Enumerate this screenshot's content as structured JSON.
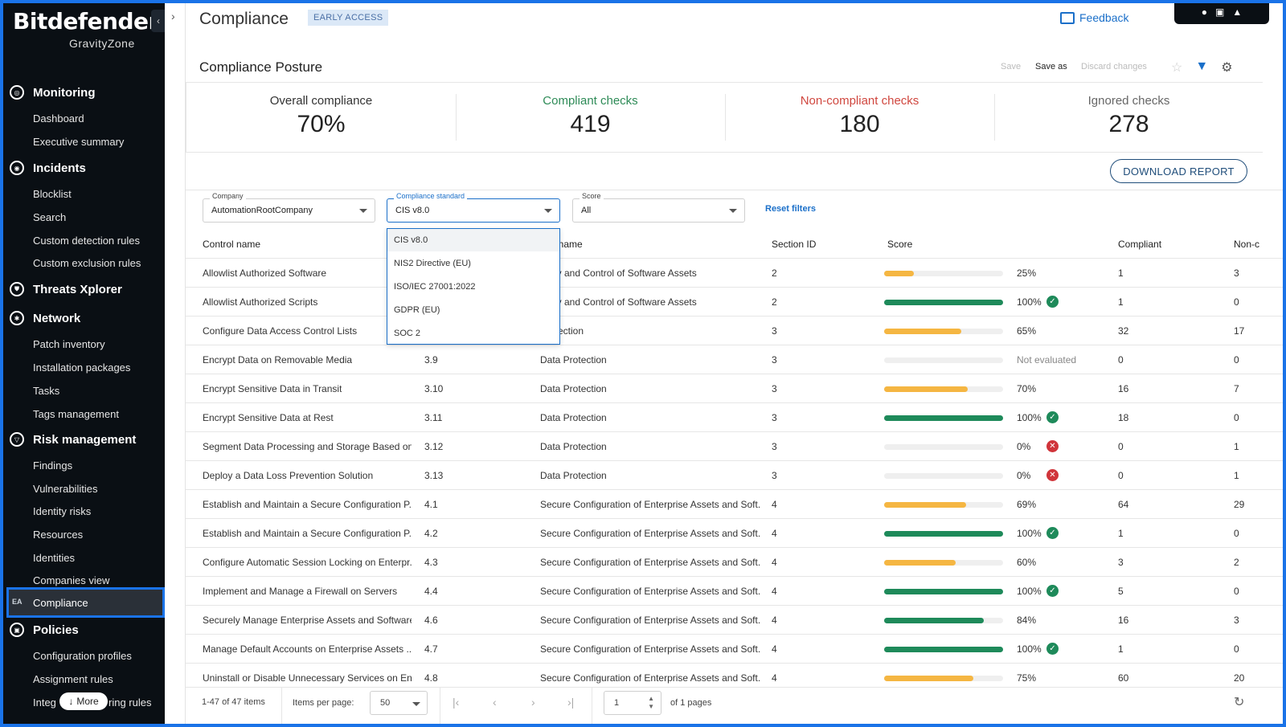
{
  "brand": {
    "name": "Bitdefender",
    "product": "GravityZone"
  },
  "sidebar": {
    "sections": [
      {
        "label": "Monitoring",
        "icon": "monitoring-icon",
        "items": [
          "Dashboard",
          "Executive summary"
        ]
      },
      {
        "label": "Incidents",
        "icon": "incidents-icon",
        "items": [
          "Blocklist",
          "Search",
          "Custom detection rules",
          "Custom exclusion rules"
        ]
      },
      {
        "label": "Threats Xplorer",
        "icon": "shield-icon",
        "items": []
      },
      {
        "label": "Network",
        "icon": "network-icon",
        "items": [
          "Patch inventory",
          "Installation packages",
          "Tasks",
          "Tags management"
        ]
      },
      {
        "label": "Risk management",
        "icon": "risk-icon",
        "items": [
          "Findings",
          "Vulnerabilities",
          "Identity risks",
          "Resources",
          "Identities",
          "Companies view"
        ]
      },
      {
        "label": "Policies",
        "icon": "policies-icon",
        "items": [
          "Configuration profiles",
          "Assignment rules",
          "Integ"
        ]
      }
    ],
    "active": {
      "badge": "EA",
      "label": "Compliance"
    },
    "more_label": "More",
    "policies_last_suffix": "ring rules"
  },
  "header": {
    "title": "Compliance",
    "badge": "EARLY ACCESS",
    "feedback_label": "Feedback"
  },
  "posture": {
    "title": "Compliance Posture",
    "toolbar": {
      "save": "Save",
      "save_as": "Save as",
      "discard": "Discard changes"
    }
  },
  "kpis": [
    {
      "label": "Overall compliance",
      "value": "70%",
      "color": "#333333"
    },
    {
      "label": "Compliant checks",
      "value": "419",
      "color": "#2e8b57"
    },
    {
      "label": "Non-compliant checks",
      "value": "180",
      "color": "#d0473f"
    },
    {
      "label": "Ignored checks",
      "value": "278",
      "color": "#666666"
    }
  ],
  "download_label": "DOWNLOAD REPORT",
  "filters": {
    "company": {
      "label": "Company",
      "value": "AutomationRootCompany"
    },
    "standard": {
      "label": "Compliance standard",
      "value": "CIS v8.0"
    },
    "score": {
      "label": "Score",
      "value": "All"
    },
    "reset_label": "Reset filters"
  },
  "dropdown_options": [
    "CIS v8.0",
    "NIS2 Directive (EU)",
    "ISO/IEC 27001:2022",
    "GDPR (EU)",
    "SOC 2"
  ],
  "table": {
    "columns": [
      "Control name",
      "tion name",
      "Section ID",
      "Score",
      "Compliant",
      "Non-c"
    ],
    "rows": [
      {
        "control": "Allowlist Authorized Software",
        "id": "",
        "section": "ntory and Control of Software Assets",
        "section_id": "2",
        "score": 25,
        "score_text": "25%",
        "status": "none",
        "compliant": "1",
        "noncompliant": "3"
      },
      {
        "control": "Allowlist Authorized Scripts",
        "id": "",
        "section": "ntory and Control of Software Assets",
        "section_id": "2",
        "score": 100,
        "score_text": "100%",
        "status": "ok",
        "compliant": "1",
        "noncompliant": "0"
      },
      {
        "control": "Configure Data Access Control Lists",
        "id": "",
        "section": "Protection",
        "section_id": "3",
        "score": 65,
        "score_text": "65%",
        "status": "none",
        "compliant": "32",
        "noncompliant": "17"
      },
      {
        "control": "Encrypt Data on Removable Media",
        "id": "3.9",
        "section": "Data Protection",
        "section_id": "3",
        "score": 0,
        "score_text": "Not evaluated",
        "status": "none",
        "compliant": "0",
        "noncompliant": "0"
      },
      {
        "control": "Encrypt Sensitive Data in Transit",
        "id": "3.10",
        "section": "Data Protection",
        "section_id": "3",
        "score": 70,
        "score_text": "70%",
        "status": "none",
        "compliant": "16",
        "noncompliant": "7"
      },
      {
        "control": "Encrypt Sensitive Data at Rest",
        "id": "3.11",
        "section": "Data Protection",
        "section_id": "3",
        "score": 100,
        "score_text": "100%",
        "status": "ok",
        "compliant": "18",
        "noncompliant": "0"
      },
      {
        "control": "Segment Data Processing and Storage Based on...",
        "id": "3.12",
        "section": "Data Protection",
        "section_id": "3",
        "score": 0,
        "score_text": "0%",
        "status": "bad",
        "compliant": "0",
        "noncompliant": "1"
      },
      {
        "control": "Deploy a Data Loss Prevention Solution",
        "id": "3.13",
        "section": "Data Protection",
        "section_id": "3",
        "score": 0,
        "score_text": "0%",
        "status": "bad",
        "compliant": "0",
        "noncompliant": "1"
      },
      {
        "control": "Establish and Maintain a Secure Configuration P...",
        "id": "4.1",
        "section": "Secure Configuration of Enterprise Assets and Soft...",
        "section_id": "4",
        "score": 69,
        "score_text": "69%",
        "status": "none",
        "compliant": "64",
        "noncompliant": "29"
      },
      {
        "control": "Establish and Maintain a Secure Configuration P...",
        "id": "4.2",
        "section": "Secure Configuration of Enterprise Assets and Soft...",
        "section_id": "4",
        "score": 100,
        "score_text": "100%",
        "status": "ok",
        "compliant": "1",
        "noncompliant": "0"
      },
      {
        "control": "Configure Automatic Session Locking on Enterpr...",
        "id": "4.3",
        "section": "Secure Configuration of Enterprise Assets and Soft...",
        "section_id": "4",
        "score": 60,
        "score_text": "60%",
        "status": "none",
        "compliant": "3",
        "noncompliant": "2"
      },
      {
        "control": "Implement and Manage a Firewall on Servers",
        "id": "4.4",
        "section": "Secure Configuration of Enterprise Assets and Soft...",
        "section_id": "4",
        "score": 100,
        "score_text": "100%",
        "status": "ok",
        "compliant": "5",
        "noncompliant": "0"
      },
      {
        "control": "Securely Manage Enterprise Assets and Software",
        "id": "4.6",
        "section": "Secure Configuration of Enterprise Assets and Soft...",
        "section_id": "4",
        "score": 84,
        "score_text": "84%",
        "status": "none",
        "compliant": "16",
        "noncompliant": "3"
      },
      {
        "control": "Manage Default Accounts on Enterprise Assets ...",
        "id": "4.7",
        "section": "Secure Configuration of Enterprise Assets and Soft...",
        "section_id": "4",
        "score": 100,
        "score_text": "100%",
        "status": "ok",
        "compliant": "1",
        "noncompliant": "0"
      },
      {
        "control": "Uninstall or Disable Unnecessary Services on En...",
        "id": "4.8",
        "section": "Secure Configuration of Enterprise Assets and Soft...",
        "section_id": "4",
        "score": 75,
        "score_text": "75%",
        "status": "none",
        "compliant": "60",
        "noncompliant": "20"
      }
    ]
  },
  "colors": {
    "bar_green": "#1e8a5a",
    "bar_orange": "#f5b642",
    "accent": "#1a6fc9"
  },
  "footer": {
    "items_text": "1-47 of 47 items",
    "per_page_label": "Items per page:",
    "per_page_value": "50",
    "page_value": "1",
    "pages_text": "of 1 pages"
  }
}
